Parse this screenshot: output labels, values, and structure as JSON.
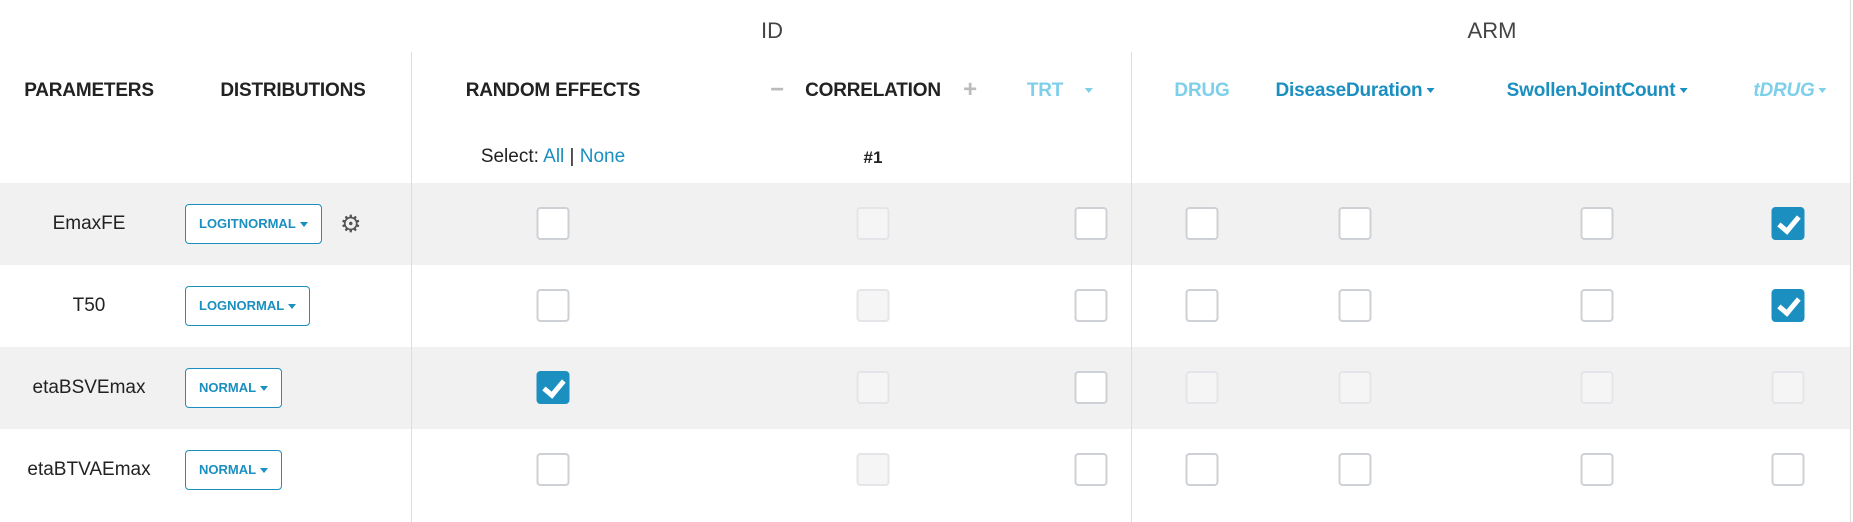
{
  "groups": {
    "id": "ID",
    "arm": "ARM"
  },
  "headers": {
    "parameters": "PARAMETERS",
    "distributions": "DISTRIBUTIONS",
    "random_effects": "RANDOM EFFECTS",
    "correlation": "CORRELATION",
    "minus": "−",
    "plus": "+"
  },
  "covariates": [
    {
      "label": "TRT",
      "color": "#7dcfea",
      "caret": true,
      "italic": false
    },
    {
      "label": "DRUG",
      "color": "#7dcfea",
      "caret": false,
      "italic": false
    },
    {
      "label": "DiseaseDuration",
      "color": "#1a8fc0",
      "caret": true,
      "italic": false
    },
    {
      "label": "SwollenJointCount",
      "color": "#1a8fc0",
      "caret": true,
      "italic": false
    },
    {
      "label": "tDRUG",
      "color": "#7dcfea",
      "caret": true,
      "italic": true
    }
  ],
  "select": {
    "label": "Select:",
    "all": "All",
    "sep": "|",
    "none": "None"
  },
  "correlation_index": "#1",
  "rows": [
    {
      "name": "EmaxFE",
      "distribution": "LOGITNORMAL",
      "gear": true,
      "re": "off",
      "corr": "disabled",
      "cov": [
        "off",
        "off",
        "off",
        "off",
        "on"
      ]
    },
    {
      "name": "T50",
      "distribution": "LOGNORMAL",
      "gear": false,
      "re": "off",
      "corr": "disabled",
      "cov": [
        "off",
        "off",
        "off",
        "off",
        "on"
      ]
    },
    {
      "name": "etaBSVEmax",
      "distribution": "NORMAL",
      "gear": false,
      "re": "on",
      "corr": "disabled",
      "cov": [
        "off",
        "disabled",
        "disabled",
        "disabled",
        "disabled"
      ]
    },
    {
      "name": "etaBTVAEmax",
      "distribution": "NORMAL",
      "gear": false,
      "re": "off",
      "corr": "disabled",
      "cov": [
        "off",
        "off",
        "off",
        "off",
        "off"
      ]
    }
  ]
}
